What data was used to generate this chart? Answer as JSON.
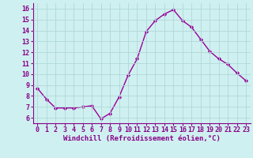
{
  "x": [
    0,
    1,
    2,
    3,
    4,
    5,
    6,
    7,
    8,
    9,
    10,
    11,
    12,
    13,
    14,
    15,
    16,
    17,
    18,
    19,
    20,
    21,
    22,
    23
  ],
  "y": [
    8.7,
    7.7,
    6.9,
    6.9,
    6.9,
    7.0,
    7.1,
    5.9,
    6.4,
    7.9,
    9.9,
    11.4,
    13.9,
    14.9,
    15.5,
    15.9,
    14.9,
    14.3,
    13.2,
    12.1,
    11.4,
    10.9,
    10.1,
    9.4
  ],
  "line_color": "#990099",
  "marker": "D",
  "marker_size": 2.2,
  "line_width": 1.0,
  "bg_color": "#cff0f0",
  "grid_color": "#b0d8d8",
  "xlabel": "Windchill (Refroidissement éolien,°C)",
  "xlabel_fontsize": 6.5,
  "tick_fontsize": 6.0,
  "ylim": [
    5.5,
    16.5
  ],
  "xlim": [
    -0.5,
    23.5
  ],
  "yticks": [
    6,
    7,
    8,
    9,
    10,
    11,
    12,
    13,
    14,
    15,
    16
  ],
  "xticks": [
    0,
    1,
    2,
    3,
    4,
    5,
    6,
    7,
    8,
    9,
    10,
    11,
    12,
    13,
    14,
    15,
    16,
    17,
    18,
    19,
    20,
    21,
    22,
    23
  ],
  "tick_color": "#880088",
  "spine_color": "#880088"
}
